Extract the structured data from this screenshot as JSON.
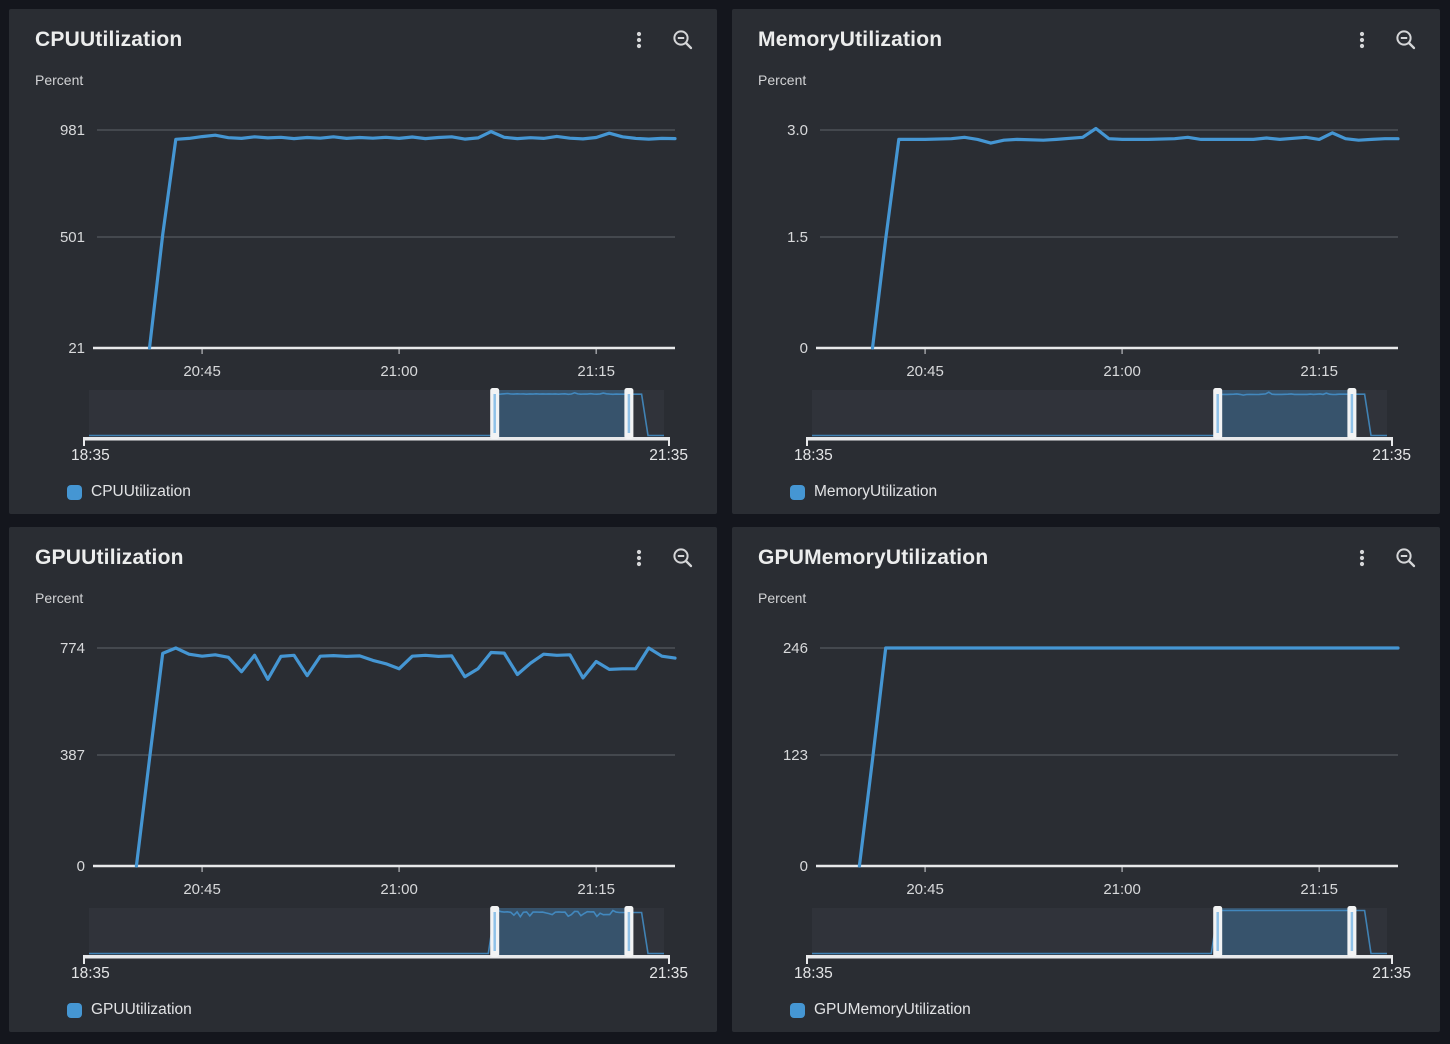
{
  "colors": {
    "accent_line": "#4596d3",
    "page_bg": "#14161d",
    "panel_bg": "#2a2d33",
    "grid_line": "#55585e",
    "axis_line": "#e8e9eb",
    "strip_bg": "#30333a",
    "brush_handle": "#f2f3f4",
    "brush_handle_inner": "#8fc1e8",
    "title_text": "#eceded",
    "tick_text": "#d8d9db"
  },
  "icons": {
    "menu": "kebab-menu-icon",
    "zoom_out": "zoom-out-icon"
  },
  "panels": [
    {
      "title": "CPUUtilization",
      "unit": "Percent",
      "legend": "CPUUtilization"
    },
    {
      "title": "MemoryUtilization",
      "unit": "Percent",
      "legend": "MemoryUtilization"
    },
    {
      "title": "GPUUtilization",
      "unit": "Percent",
      "legend": "GPUUtilization"
    },
    {
      "title": "GPUMemoryUtilization",
      "unit": "Percent",
      "legend": "GPUMemoryUtilization"
    }
  ],
  "chart_data": [
    {
      "type": "line",
      "title": "CPUUtilization",
      "ylabel": "Percent",
      "yticks": [
        "981",
        "501",
        "21"
      ],
      "ylim": [
        21,
        981
      ],
      "xticks": [
        "20:45",
        "21:00",
        "21:15"
      ],
      "x_range": [
        "20:37",
        "21:21"
      ],
      "grid": true,
      "legend_position": "bottom",
      "timeline": {
        "start": "18:35",
        "end": "21:35",
        "selection": [
          "20:42",
          "21:24"
        ],
        "data_end": "21:28"
      },
      "series": [
        {
          "name": "CPUUtilization",
          "points": [
            [
              "20:41",
              21
            ],
            [
              "20:42",
              520
            ],
            [
              "20:43",
              940
            ],
            [
              "20:44",
              944
            ],
            [
              "20:45",
              952
            ],
            [
              "20:46",
              958
            ],
            [
              "20:47",
              947
            ],
            [
              "20:48",
              944
            ],
            [
              "20:49",
              951
            ],
            [
              "20:50",
              946
            ],
            [
              "20:51",
              949
            ],
            [
              "20:52",
              943
            ],
            [
              "20:53",
              948
            ],
            [
              "20:54",
              945
            ],
            [
              "20:55",
              951
            ],
            [
              "20:56",
              944
            ],
            [
              "20:57",
              948
            ],
            [
              "20:58",
              945
            ],
            [
              "20:59",
              949
            ],
            [
              "21:00",
              944
            ],
            [
              "21:01",
              950
            ],
            [
              "21:02",
              943
            ],
            [
              "21:03",
              948
            ],
            [
              "21:04",
              951
            ],
            [
              "21:05",
              941
            ],
            [
              "21:06",
              946
            ],
            [
              "21:07",
              974
            ],
            [
              "21:08",
              949
            ],
            [
              "21:09",
              943
            ],
            [
              "21:10",
              947
            ],
            [
              "21:11",
              944
            ],
            [
              "21:12",
              953
            ],
            [
              "21:13",
              945
            ],
            [
              "21:14",
              942
            ],
            [
              "21:15",
              948
            ],
            [
              "21:16",
              967
            ],
            [
              "21:17",
              951
            ],
            [
              "21:18",
              944
            ],
            [
              "21:19",
              941
            ],
            [
              "21:20",
              944
            ],
            [
              "21:21",
              943
            ]
          ]
        }
      ]
    },
    {
      "type": "line",
      "title": "MemoryUtilization",
      "ylabel": "Percent",
      "yticks": [
        "3.0",
        "1.5",
        "0"
      ],
      "ylim": [
        0,
        3
      ],
      "xticks": [
        "20:45",
        "21:00",
        "21:15"
      ],
      "x_range": [
        "20:37",
        "21:21"
      ],
      "grid": true,
      "legend_position": "bottom",
      "timeline": {
        "start": "18:35",
        "end": "21:35",
        "selection": [
          "20:42",
          "21:24"
        ],
        "data_end": "21:28"
      },
      "series": [
        {
          "name": "MemoryUtilization",
          "points": [
            [
              "20:41",
              0
            ],
            [
              "20:42",
              1.5
            ],
            [
              "20:43",
              2.87
            ],
            [
              "20:45",
              2.87
            ],
            [
              "20:47",
              2.88
            ],
            [
              "20:48",
              2.9
            ],
            [
              "20:49",
              2.87
            ],
            [
              "20:50",
              2.82
            ],
            [
              "20:51",
              2.86
            ],
            [
              "20:52",
              2.87
            ],
            [
              "20:54",
              2.86
            ],
            [
              "20:55",
              2.87
            ],
            [
              "20:57",
              2.9
            ],
            [
              "20:58",
              3.02
            ],
            [
              "20:59",
              2.88
            ],
            [
              "21:00",
              2.87
            ],
            [
              "21:02",
              2.87
            ],
            [
              "21:04",
              2.88
            ],
            [
              "21:05",
              2.9
            ],
            [
              "21:06",
              2.87
            ],
            [
              "21:08",
              2.87
            ],
            [
              "21:10",
              2.87
            ],
            [
              "21:11",
              2.89
            ],
            [
              "21:12",
              2.87
            ],
            [
              "21:14",
              2.9
            ],
            [
              "21:15",
              2.87
            ],
            [
              "21:16",
              2.96
            ],
            [
              "21:17",
              2.88
            ],
            [
              "21:18",
              2.86
            ],
            [
              "21:19",
              2.87
            ],
            [
              "21:20",
              2.88
            ],
            [
              "21:21",
              2.88
            ]
          ]
        }
      ]
    },
    {
      "type": "line",
      "title": "GPUUtilization",
      "ylabel": "Percent",
      "yticks": [
        "774",
        "387",
        "0"
      ],
      "ylim": [
        0,
        774
      ],
      "xticks": [
        "20:45",
        "21:00",
        "21:15"
      ],
      "x_range": [
        "20:37",
        "21:21"
      ],
      "grid": true,
      "legend_position": "bottom",
      "timeline": {
        "start": "18:35",
        "end": "21:35",
        "selection": [
          "20:42",
          "21:24"
        ],
        "data_end": "21:28"
      },
      "series": [
        {
          "name": "GPUUtilization",
          "points": [
            [
              "20:40",
              0
            ],
            [
              "20:41",
              380
            ],
            [
              "20:42",
              755
            ],
            [
              "20:43",
              774
            ],
            [
              "20:44",
              752
            ],
            [
              "20:45",
              745
            ],
            [
              "20:46",
              750
            ],
            [
              "20:47",
              741
            ],
            [
              "20:48",
              690
            ],
            [
              "20:49",
              748
            ],
            [
              "20:50",
              663
            ],
            [
              "20:51",
              744
            ],
            [
              "20:52",
              748
            ],
            [
              "20:53",
              676
            ],
            [
              "20:54",
              745
            ],
            [
              "20:55",
              747
            ],
            [
              "20:56",
              744
            ],
            [
              "20:57",
              746
            ],
            [
              "20:58",
              730
            ],
            [
              "20:59",
              718
            ],
            [
              "21:00",
              700
            ],
            [
              "21:01",
              745
            ],
            [
              "21:02",
              748
            ],
            [
              "21:03",
              744
            ],
            [
              "21:04",
              746
            ],
            [
              "21:05",
              672
            ],
            [
              "21:06",
              700
            ],
            [
              "21:07",
              758
            ],
            [
              "21:08",
              756
            ],
            [
              "21:09",
              680
            ],
            [
              "21:10",
              720
            ],
            [
              "21:11",
              752
            ],
            [
              "21:12",
              748
            ],
            [
              "21:13",
              750
            ],
            [
              "21:14",
              668
            ],
            [
              "21:15",
              726
            ],
            [
              "21:16",
              698
            ],
            [
              "21:17",
              700
            ],
            [
              "21:18",
              700
            ],
            [
              "21:19",
              774
            ],
            [
              "21:20",
              745
            ],
            [
              "21:21",
              738
            ]
          ]
        }
      ]
    },
    {
      "type": "line",
      "title": "GPUMemoryUtilization",
      "ylabel": "Percent",
      "yticks": [
        "246",
        "123",
        "0"
      ],
      "ylim": [
        0,
        246
      ],
      "xticks": [
        "20:45",
        "21:00",
        "21:15"
      ],
      "x_range": [
        "20:37",
        "21:21"
      ],
      "grid": true,
      "legend_position": "bottom",
      "timeline": {
        "start": "18:35",
        "end": "21:35",
        "selection": [
          "20:42",
          "21:24"
        ],
        "data_end": "21:28"
      },
      "series": [
        {
          "name": "GPUMemoryUtilization",
          "points": [
            [
              "20:40",
              0
            ],
            [
              "20:41",
              120
            ],
            [
              "20:42",
              246
            ],
            [
              "20:50",
              246
            ],
            [
              "21:00",
              246
            ],
            [
              "21:10",
              246
            ],
            [
              "21:21",
              246
            ]
          ]
        }
      ]
    }
  ]
}
